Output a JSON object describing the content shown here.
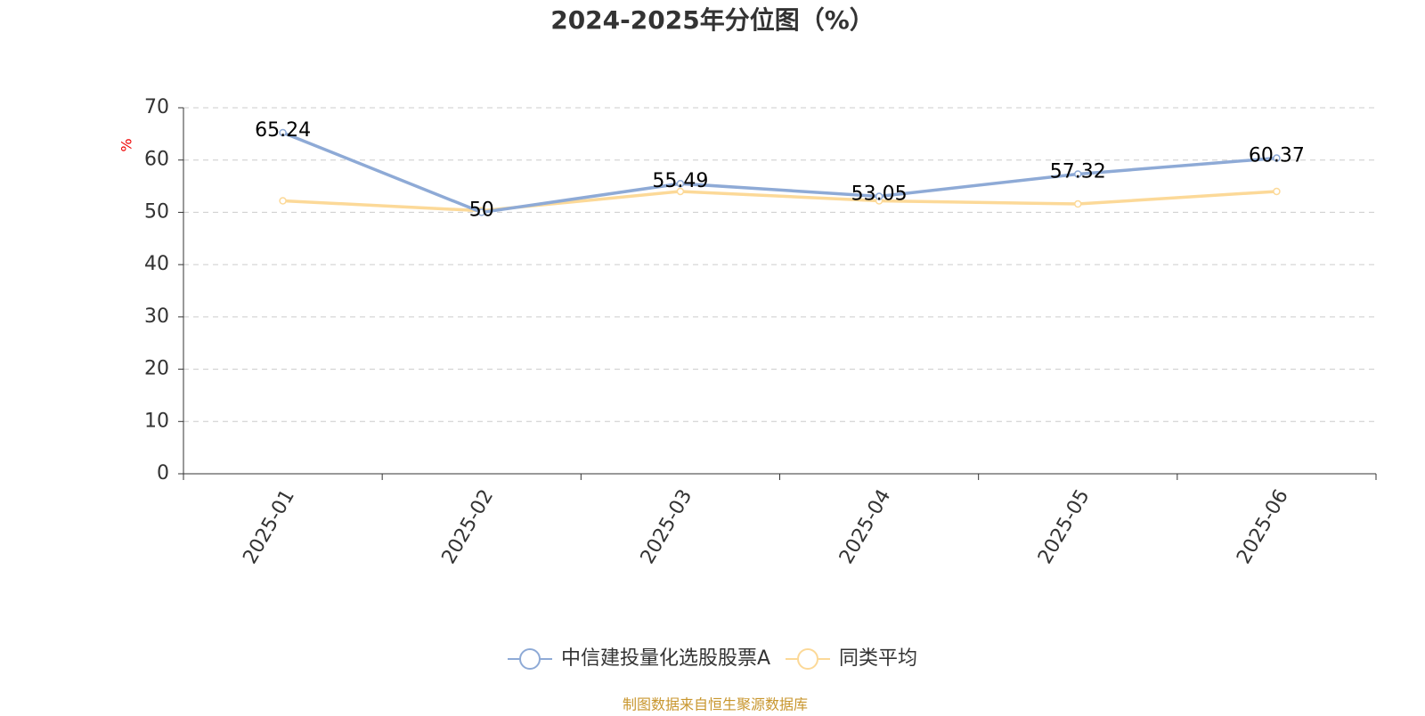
{
  "chart_data": {
    "type": "line",
    "title": "2024-2025年分位图（%）",
    "y_label": "%",
    "categories": [
      "2025-01",
      "2025-02",
      "2025-03",
      "2025-04",
      "2025-05",
      "2025-06"
    ],
    "series": [
      {
        "name": "中信建投量化选股股票A",
        "color": "#8eaad6",
        "values": [
          65.24,
          50,
          55.49,
          53.05,
          57.32,
          60.37
        ],
        "show_labels": true
      },
      {
        "name": "同类平均",
        "color": "#fcd998",
        "values": [
          52.2,
          50.3,
          54.0,
          52.2,
          51.6,
          54.0
        ],
        "show_labels": false
      }
    ],
    "ylim": [
      0,
      70
    ],
    "yticks": [
      0,
      10,
      20,
      30,
      40,
      50,
      60,
      70
    ],
    "grid": true,
    "source": "制图数据来自恒生聚源数据库"
  }
}
